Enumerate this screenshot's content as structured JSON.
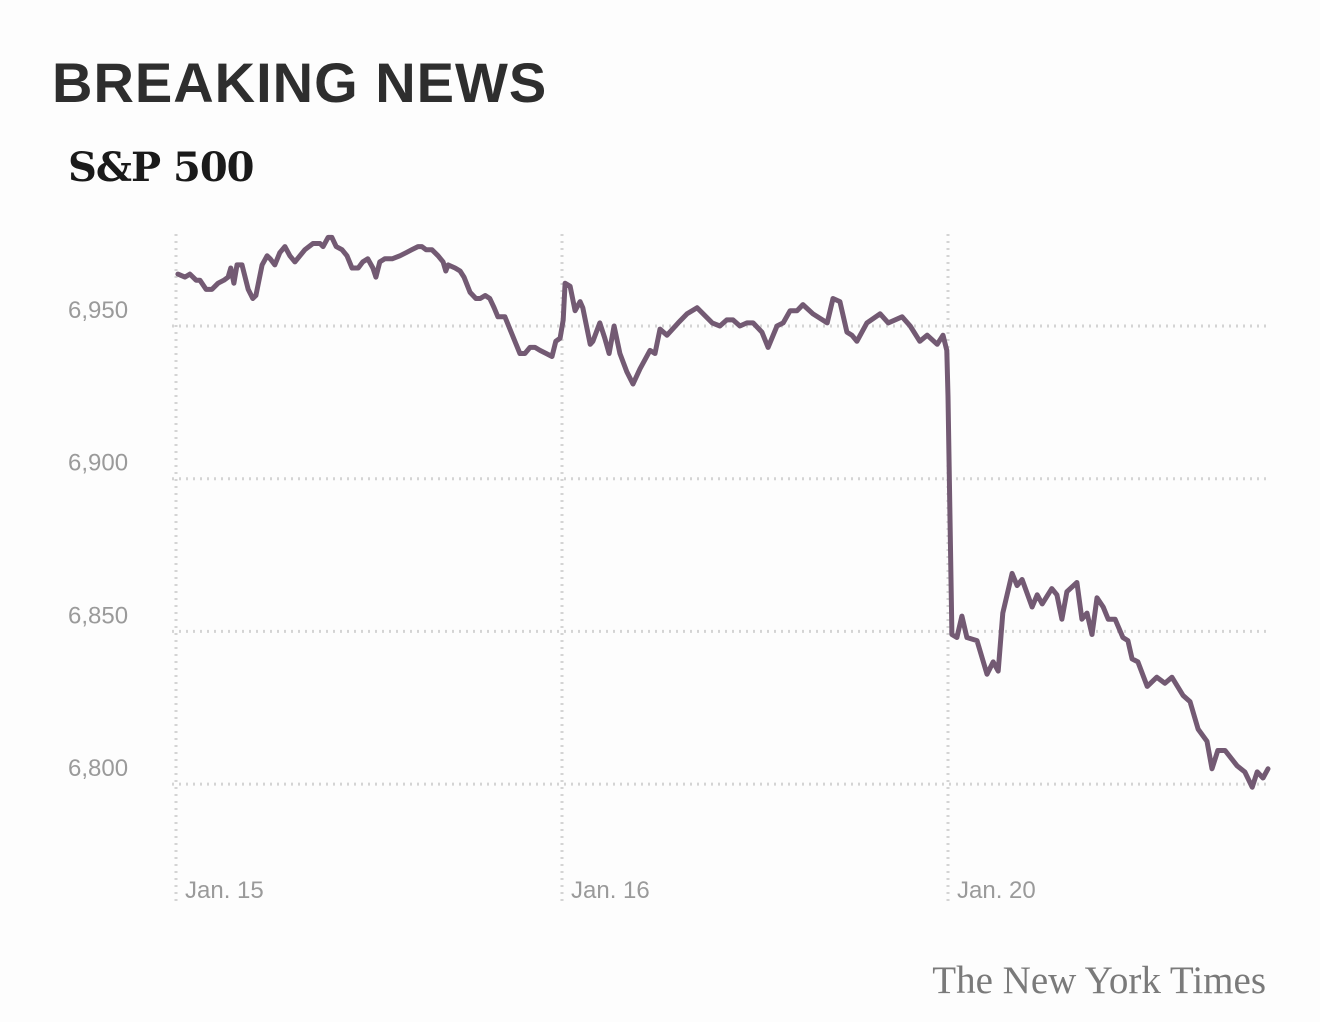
{
  "headline": "BREAKING NEWS",
  "source": "The New York Times",
  "colors": {
    "line": "#735a73",
    "grid": "#d4d4d4",
    "tick": "#9a9a9a"
  },
  "chart_data": {
    "type": "line",
    "title": "S&P 500",
    "xlabel": "",
    "ylabel": "",
    "ylim": [
      6770,
      6980
    ],
    "xlim": [
      0,
      2.83
    ],
    "x_ticks": [
      {
        "x": 0,
        "label": "Jan. 15"
      },
      {
        "x": 1,
        "label": "Jan. 16"
      },
      {
        "x": 2,
        "label": "Jan. 20"
      }
    ],
    "y_ticks": [
      {
        "y": 6950,
        "label": "6,950"
      },
      {
        "y": 6900,
        "label": "6,900"
      },
      {
        "y": 6850,
        "label": "6,850"
      },
      {
        "y": 6800,
        "label": "6,800"
      }
    ],
    "grid": true,
    "series": [
      {
        "name": "S&P 500",
        "x": [
          0.005,
          0.023,
          0.036,
          0.052,
          0.062,
          0.078,
          0.093,
          0.109,
          0.124,
          0.135,
          0.142,
          0.15,
          0.158,
          0.171,
          0.187,
          0.199,
          0.207,
          0.223,
          0.236,
          0.244,
          0.256,
          0.269,
          0.282,
          0.295,
          0.308,
          0.321,
          0.334,
          0.355,
          0.373,
          0.381,
          0.394,
          0.404,
          0.415,
          0.43,
          0.443,
          0.456,
          0.472,
          0.484,
          0.497,
          0.51,
          0.518,
          0.528,
          0.541,
          0.56,
          0.58,
          0.596,
          0.611,
          0.627,
          0.637,
          0.648,
          0.663,
          0.679,
          0.692,
          0.699,
          0.705,
          0.723,
          0.736,
          0.746,
          0.762,
          0.777,
          0.788,
          0.801,
          0.813,
          0.824,
          0.834,
          0.852,
          0.865,
          0.878,
          0.891,
          0.904,
          0.917,
          0.93,
          0.943,
          0.959,
          0.974,
          0.984,
          0.995,
          1.003,
          1.008,
          1.021,
          1.034,
          1.047,
          1.054,
          1.073,
          1.08,
          1.098,
          1.111,
          1.122,
          1.135,
          1.15,
          1.168,
          1.184,
          1.202,
          1.228,
          1.241,
          1.254,
          1.272,
          1.301,
          1.324,
          1.35,
          1.389,
          1.409,
          1.427,
          1.443,
          1.461,
          1.479,
          1.495,
          1.518,
          1.534,
          1.557,
          1.573,
          1.591,
          1.609,
          1.624,
          1.65,
          1.687,
          1.702,
          1.72,
          1.738,
          1.751,
          1.764,
          1.79,
          1.824,
          1.845,
          1.881,
          1.902,
          1.927,
          1.946,
          1.972,
          1.987,
          1.997,
          2.0,
          2.01,
          2.023,
          2.036,
          2.049,
          2.075,
          2.101,
          2.117,
          2.13,
          2.142,
          2.166,
          2.179,
          2.192,
          2.218,
          2.231,
          2.244,
          2.269,
          2.282,
          2.295,
          2.308,
          2.334,
          2.347,
          2.36,
          2.373,
          2.386,
          2.402,
          2.415,
          2.433,
          2.453,
          2.466,
          2.477,
          2.492,
          2.516,
          2.541,
          2.562,
          2.58,
          2.609,
          2.627,
          2.648,
          2.671,
          2.684,
          2.699,
          2.718,
          2.749,
          2.769,
          2.788,
          2.801,
          2.816,
          2.829
        ],
        "values": [
          6967,
          6966,
          6967,
          6965,
          6965,
          6962,
          6962,
          6964,
          6965,
          6966,
          6969,
          6964,
          6970,
          6970,
          6962,
          6959,
          6960,
          6970,
          6973,
          6972,
          6970,
          6974,
          6976,
          6973,
          6971,
          6973,
          6975,
          6977,
          6977,
          6976,
          6979,
          6979,
          6976,
          6975,
          6973,
          6969,
          6969,
          6971,
          6972,
          6969,
          6966,
          6971,
          6972,
          6972,
          6973,
          6974,
          6975,
          6976,
          6976,
          6975,
          6975,
          6973,
          6971,
          6968,
          6970,
          6969,
          6968,
          6966,
          6961,
          6959,
          6959,
          6960,
          6959,
          6956,
          6953,
          6953,
          6949,
          6945,
          6941,
          6941,
          6943,
          6943,
          6942,
          6941,
          6940,
          6945,
          6946,
          6952,
          6964,
          6963,
          6955,
          6958,
          6956,
          6944,
          6945,
          6951,
          6946,
          6941,
          6950,
          6941,
          6935,
          6931,
          6936,
          6942,
          6941,
          6949,
          6947,
          6951,
          6954,
          6956,
          6951,
          6950,
          6952,
          6952,
          6950,
          6951,
          6951,
          6948,
          6943,
          6950,
          6951,
          6955,
          6955,
          6957,
          6954,
          6951,
          6959,
          6958,
          6948,
          6947,
          6945,
          6951,
          6954,
          6951,
          6953,
          6950,
          6945,
          6947,
          6944,
          6947,
          6942,
          6927,
          6849,
          6848,
          6855,
          6848,
          6847,
          6836,
          6840,
          6837,
          6856,
          6869,
          6865,
          6867,
          6858,
          6862,
          6859,
          6864,
          6862,
          6854,
          6863,
          6866,
          6854,
          6856,
          6849,
          6861,
          6858,
          6854,
          6854,
          6848,
          6847,
          6841,
          6840,
          6832,
          6835,
          6833,
          6835,
          6829,
          6827,
          6818,
          6814,
          6805,
          6811,
          6811,
          6806,
          6804,
          6799,
          6804,
          6802,
          6805
        ]
      }
    ]
  }
}
